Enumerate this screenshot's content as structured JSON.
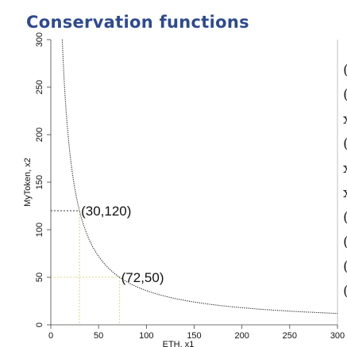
{
  "slide": {
    "title": "Conservation functions",
    "title_color": "#2e4a8f"
  },
  "chart_data": {
    "type": "line",
    "title": "",
    "xlabel": "ETH, x1",
    "ylabel": "MyToken, x2",
    "xlim": [
      0,
      300
    ],
    "ylim": [
      0,
      300
    ],
    "xticks": [
      "0",
      "50",
      "100",
      "150",
      "200",
      "250",
      "300"
    ],
    "yticks": [
      "0",
      "50",
      "100",
      "150",
      "200",
      "250",
      "300"
    ],
    "grid": false,
    "curve": {
      "equation": "x1 * x2 = 3600",
      "x_start": 12,
      "x_end": 300,
      "color": "#222222",
      "style": "dotted"
    },
    "points": [
      {
        "x": 30,
        "y": 120,
        "label": "(30,120)",
        "guide_color_x": "#d9d37a",
        "guide_color_y": "#3a3a3a"
      },
      {
        "x": 72,
        "y": 50,
        "label": "(72,50)",
        "guide_color_x": "#e0d878",
        "guide_color_y": "#e0d878"
      }
    ]
  },
  "right_edge_glyphs": [
    "(",
    "(",
    "x",
    "(",
    "x",
    "x",
    "(",
    "(",
    "(",
    "("
  ]
}
